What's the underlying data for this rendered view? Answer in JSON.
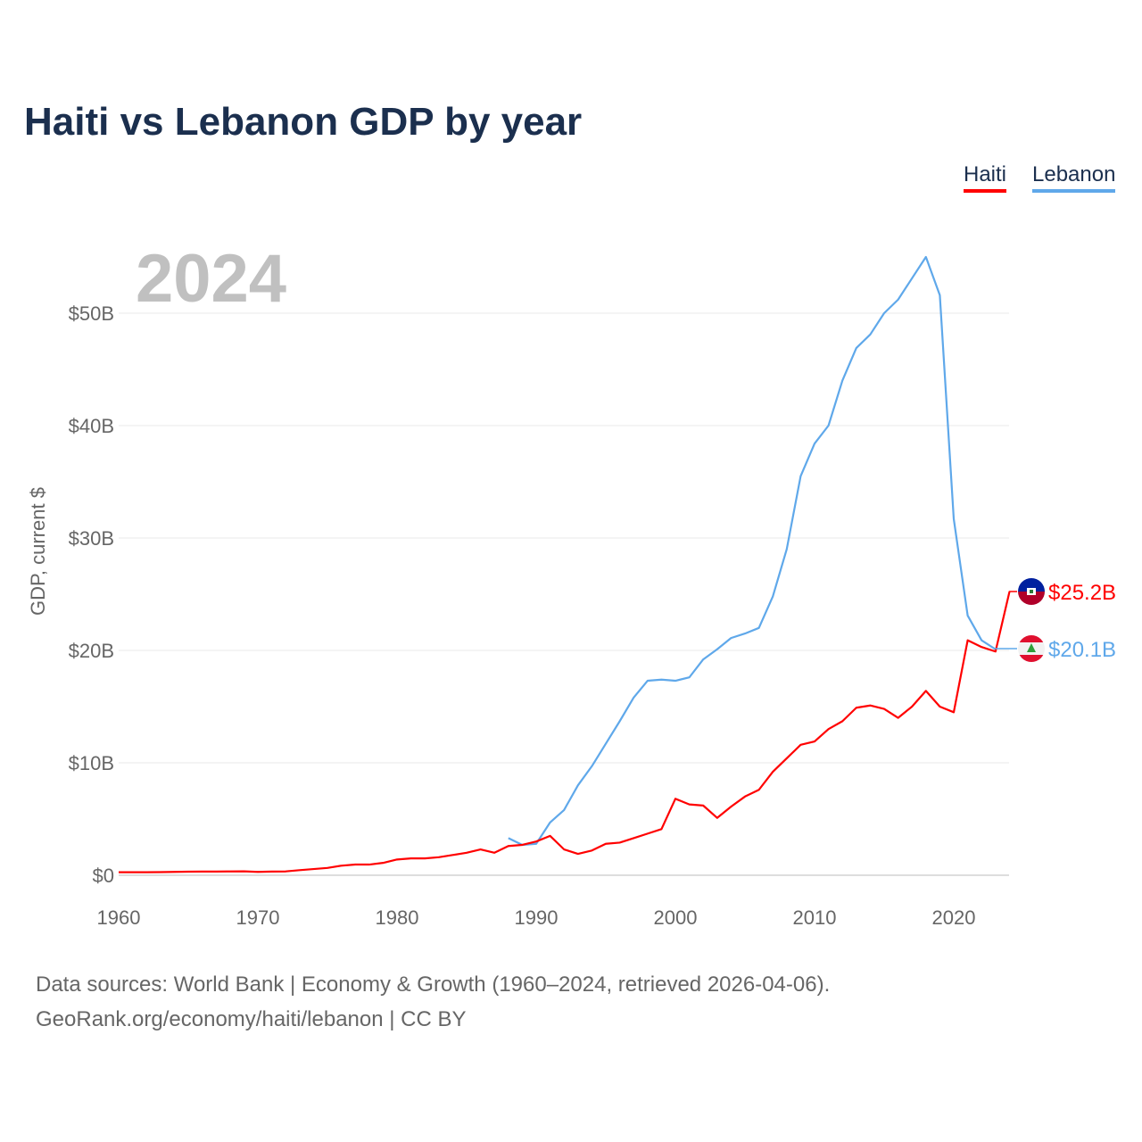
{
  "chart_data": {
    "type": "line",
    "title": "Haiti vs Lebanon GDP by year",
    "ylabel": "GDP, current $",
    "xlabel": "",
    "year_watermark": "2024",
    "xlim": [
      1960,
      2024
    ],
    "ylim": [
      0,
      55
    ],
    "x_ticks": [
      1960,
      1970,
      1980,
      1990,
      2000,
      2010,
      2020
    ],
    "y_ticks": [
      0,
      10,
      20,
      30,
      40,
      50
    ],
    "y_tick_labels": [
      "$0",
      "$10B",
      "$20B",
      "$30B",
      "$40B",
      "$50B"
    ],
    "grid": true,
    "legend_position": "top-right",
    "series": [
      {
        "name": "Haiti",
        "color": "#ff0000",
        "end_label": "$25.2B",
        "flag_icon": "haiti-flag-icon",
        "x": [
          1960,
          1961,
          1962,
          1963,
          1964,
          1965,
          1966,
          1967,
          1968,
          1969,
          1970,
          1971,
          1972,
          1973,
          1974,
          1975,
          1976,
          1977,
          1978,
          1979,
          1980,
          1981,
          1982,
          1983,
          1984,
          1985,
          1986,
          1987,
          1988,
          1989,
          1990,
          1991,
          1992,
          1993,
          1994,
          1995,
          1996,
          1997,
          1998,
          1999,
          2000,
          2001,
          2002,
          2003,
          2004,
          2005,
          2006,
          2007,
          2008,
          2009,
          2010,
          2011,
          2012,
          2013,
          2014,
          2015,
          2016,
          2017,
          2018,
          2019,
          2020,
          2021,
          2022,
          2023,
          2024
        ],
        "values": [
          0.27,
          0.27,
          0.27,
          0.28,
          0.3,
          0.32,
          0.33,
          0.33,
          0.34,
          0.35,
          0.3,
          0.33,
          0.34,
          0.45,
          0.55,
          0.65,
          0.85,
          0.95,
          0.95,
          1.1,
          1.4,
          1.5,
          1.5,
          1.6,
          1.8,
          2.0,
          2.3,
          2.0,
          2.6,
          2.7,
          3.0,
          3.5,
          2.3,
          1.9,
          2.2,
          2.8,
          2.9,
          3.3,
          3.7,
          4.1,
          6.8,
          6.3,
          6.2,
          5.1,
          6.1,
          7.0,
          7.6,
          9.2,
          10.4,
          11.6,
          11.9,
          13.0,
          13.7,
          14.9,
          15.1,
          14.8,
          14.0,
          15.0,
          16.4,
          15.0,
          14.5,
          20.9,
          20.3,
          19.9,
          25.2
        ]
      },
      {
        "name": "Lebanon",
        "color": "#5fa8ea",
        "end_label": "$20.1B",
        "flag_icon": "lebanon-flag-icon",
        "x": [
          1988,
          1989,
          1990,
          1991,
          1992,
          1993,
          1994,
          1995,
          1996,
          1997,
          1998,
          1999,
          2000,
          2001,
          2002,
          2003,
          2004,
          2005,
          2006,
          2007,
          2008,
          2009,
          2010,
          2011,
          2012,
          2013,
          2014,
          2015,
          2016,
          2017,
          2018,
          2019,
          2020,
          2021,
          2022,
          2023
        ],
        "values": [
          3.3,
          2.7,
          2.8,
          4.7,
          5.8,
          8.0,
          9.7,
          11.7,
          13.7,
          15.8,
          17.3,
          17.4,
          17.3,
          17.6,
          19.2,
          20.1,
          21.1,
          21.5,
          22.0,
          24.8,
          29.0,
          35.5,
          38.4,
          40.0,
          44.0,
          46.9,
          48.1,
          50.0,
          51.2,
          53.1,
          55.0,
          51.6,
          31.7,
          23.1,
          20.9,
          20.1
        ]
      }
    ]
  },
  "footer": {
    "line1": "Data sources: World Bank | Economy & Growth (1960–2024, retrieved 2026-04-06).",
    "line2": "GeoRank.org/economy/haiti/lebanon | CC BY"
  }
}
